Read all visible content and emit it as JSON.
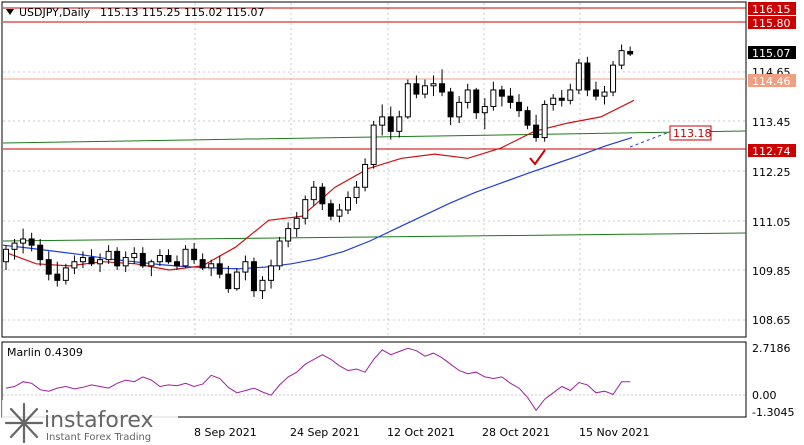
{
  "header": {
    "symbol": "USDJPY,Daily",
    "ohlc": "115.13 115.25 115.02 115.07"
  },
  "price_axis": {
    "ticks": [
      "116.15",
      "115.80",
      "115.07",
      "114.65",
      "114.46",
      "113.45",
      "112.74",
      "112.25",
      "111.05",
      "109.85",
      "108.65"
    ],
    "current": "115.07",
    "level_labels": {
      "r1": "116.15",
      "r2": "115.80",
      "s1": "114.46",
      "s2": "112.74",
      "target": "113.18"
    }
  },
  "indicator": {
    "name": "Marlin 0.4309",
    "ticks": [
      "2.7186",
      "0.00",
      "-1.3045"
    ]
  },
  "time_axis": {
    "labels": [
      "8 Sep 2021",
      "24 Sep 2021",
      "12 Oct 2021",
      "28 Oct 2021",
      "15 Nov 2021"
    ]
  },
  "watermark": {
    "brand": "instaforex",
    "tagline": "Instant Forex Trading"
  },
  "colors": {
    "grid": "#c8c8c8",
    "red_line": "#cc0000",
    "salmon_line": "#f0a080",
    "green_line": "#1a7a1a",
    "blue_ma": "#1f3fd8",
    "red_ma": "#d01010",
    "oscillator": "#a020a0",
    "candle": "#000000"
  },
  "chart_data": {
    "type": "candlestick",
    "symbol": "USDJPY",
    "timeframe": "Daily",
    "last_bar": {
      "open": 115.13,
      "high": 115.25,
      "low": 115.02,
      "close": 115.07
    },
    "candles": [
      [
        110.05,
        110.45,
        109.85,
        110.35
      ],
      [
        110.35,
        110.6,
        110.1,
        110.5
      ],
      [
        110.5,
        110.85,
        110.25,
        110.6
      ],
      [
        110.6,
        110.75,
        110.3,
        110.45
      ],
      [
        110.45,
        110.6,
        109.95,
        110.1
      ],
      [
        110.1,
        110.3,
        109.6,
        109.75
      ],
      [
        109.75,
        110.05,
        109.45,
        109.6
      ],
      [
        109.6,
        110.0,
        109.5,
        109.9
      ],
      [
        109.9,
        110.2,
        109.75,
        110.05
      ],
      [
        110.05,
        110.3,
        109.9,
        110.15
      ],
      [
        110.15,
        110.35,
        109.95,
        110.0
      ],
      [
        110.0,
        110.25,
        109.8,
        110.1
      ],
      [
        110.1,
        110.45,
        110.0,
        110.3
      ],
      [
        110.3,
        110.4,
        109.85,
        109.95
      ],
      [
        109.95,
        110.3,
        109.8,
        110.15
      ],
      [
        110.15,
        110.4,
        110.0,
        110.25
      ],
      [
        110.25,
        110.4,
        109.9,
        109.95
      ],
      [
        109.95,
        110.1,
        109.7,
        110.05
      ],
      [
        110.05,
        110.35,
        109.95,
        110.2
      ],
      [
        110.2,
        110.35,
        110.0,
        110.05
      ],
      [
        110.05,
        110.2,
        109.85,
        109.95
      ],
      [
        109.95,
        110.45,
        109.9,
        110.35
      ],
      [
        110.35,
        110.5,
        110.0,
        110.1
      ],
      [
        110.1,
        110.25,
        109.85,
        109.9
      ],
      [
        109.9,
        110.1,
        109.7,
        110.0
      ],
      [
        110.0,
        110.2,
        109.65,
        109.75
      ],
      [
        109.75,
        109.95,
        109.3,
        109.4
      ],
      [
        109.4,
        109.9,
        109.35,
        109.8
      ],
      [
        109.8,
        110.2,
        109.6,
        110.05
      ],
      [
        110.05,
        110.15,
        109.2,
        109.35
      ],
      [
        109.35,
        109.7,
        109.15,
        109.6
      ],
      [
        109.6,
        110.1,
        109.4,
        109.95
      ],
      [
        109.95,
        110.65,
        109.85,
        110.55
      ],
      [
        110.55,
        111.0,
        110.4,
        110.85
      ],
      [
        110.85,
        111.25,
        110.65,
        111.1
      ],
      [
        111.1,
        111.65,
        110.95,
        111.55
      ],
      [
        111.55,
        112.0,
        111.4,
        111.85
      ],
      [
        111.85,
        111.95,
        111.3,
        111.45
      ],
      [
        111.45,
        111.55,
        111.05,
        111.15
      ],
      [
        111.15,
        111.45,
        111.0,
        111.3
      ],
      [
        111.3,
        111.75,
        111.2,
        111.6
      ],
      [
        111.6,
        112.0,
        111.45,
        111.85
      ],
      [
        111.85,
        112.55,
        111.75,
        112.4
      ],
      [
        112.4,
        113.45,
        112.3,
        113.35
      ],
      [
        113.35,
        113.85,
        113.1,
        113.55
      ],
      [
        113.55,
        113.8,
        113.0,
        113.2
      ],
      [
        113.2,
        113.7,
        113.05,
        113.55
      ],
      [
        113.55,
        114.45,
        113.5,
        114.35
      ],
      [
        114.35,
        114.55,
        114.0,
        114.1
      ],
      [
        114.1,
        114.45,
        114.0,
        114.3
      ],
      [
        114.3,
        114.55,
        114.05,
        114.35
      ],
      [
        114.35,
        114.7,
        114.05,
        114.15
      ],
      [
        114.15,
        114.25,
        113.35,
        113.55
      ],
      [
        113.55,
        114.05,
        113.4,
        113.9
      ],
      [
        113.9,
        114.35,
        113.75,
        114.2
      ],
      [
        114.2,
        114.25,
        113.5,
        113.65
      ],
      [
        113.65,
        114.0,
        113.25,
        113.8
      ],
      [
        113.8,
        114.4,
        113.7,
        114.2
      ],
      [
        114.2,
        114.3,
        113.8,
        114.05
      ],
      [
        114.05,
        114.25,
        113.75,
        113.9
      ],
      [
        113.9,
        114.1,
        113.55,
        113.7
      ],
      [
        113.7,
        113.8,
        113.25,
        113.35
      ],
      [
        113.35,
        113.6,
        112.95,
        113.05
      ],
      [
        113.05,
        113.95,
        112.95,
        113.85
      ],
      [
        113.85,
        114.1,
        113.7,
        114.0
      ],
      [
        114.0,
        114.2,
        113.8,
        113.95
      ],
      [
        113.95,
        114.35,
        113.85,
        114.2
      ],
      [
        114.2,
        114.95,
        114.1,
        114.85
      ],
      [
        114.85,
        115.0,
        114.05,
        114.2
      ],
      [
        114.2,
        114.4,
        113.95,
        114.05
      ],
      [
        114.05,
        114.3,
        113.85,
        114.15
      ],
      [
        114.15,
        114.9,
        114.05,
        114.8
      ],
      [
        114.8,
        115.3,
        114.7,
        115.15
      ],
      [
        115.13,
        115.25,
        115.02,
        115.07
      ]
    ],
    "moving_averages": [
      {
        "color": "#1f3fd8",
        "values": [
          110.45,
          110.38,
          110.3,
          110.22,
          110.12,
          110.05,
          109.98,
          109.93,
          109.9,
          109.88,
          109.92,
          110.0,
          110.12,
          110.3,
          110.55,
          110.85,
          111.15,
          111.45,
          111.72,
          111.95,
          112.18,
          112.4,
          112.62,
          112.85,
          113.05
        ]
      },
      {
        "color": "#d01010",
        "values": [
          110.3,
          110.0,
          109.95,
          110.05,
          110.0,
          109.85,
          109.95,
          110.4,
          111.05,
          111.15,
          111.85,
          112.3,
          112.55,
          112.65,
          112.55,
          112.8,
          113.2,
          113.4,
          113.55,
          113.95
        ]
      }
    ],
    "levels": [
      116.15,
      115.8,
      114.46,
      113.18,
      112.74
    ],
    "oscillator": {
      "name": "Marlin",
      "value": 0.4309,
      "range": [
        -1.3045,
        2.7186
      ]
    },
    "x_labels": [
      "8 Sep 2021",
      "24 Sep 2021",
      "12 Oct 2021",
      "28 Oct 2021",
      "15 Nov 2021"
    ]
  }
}
